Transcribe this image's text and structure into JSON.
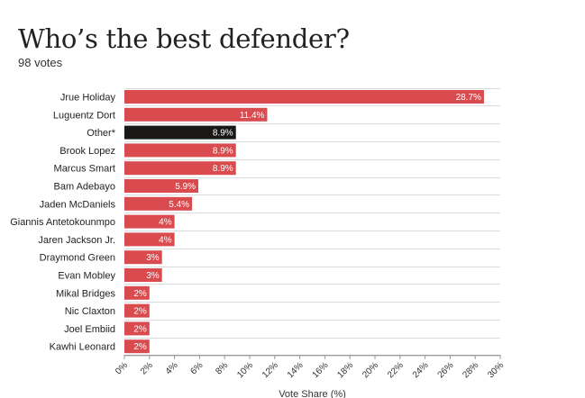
{
  "header": {
    "title": "Who’s the best defender?",
    "subtitle": "98 votes"
  },
  "chart_data": {
    "type": "bar",
    "orientation": "horizontal",
    "title": "Who’s the best defender?",
    "subtitle": "98 votes",
    "xlabel": "Vote Share (%)",
    "ylabel": "",
    "xlim": [
      0,
      30
    ],
    "x_ticks": [
      "0%",
      "2%",
      "4%",
      "6%",
      "8%",
      "10%",
      "12%",
      "14%",
      "16%",
      "18%",
      "20%",
      "22%",
      "24%",
      "26%",
      "28%",
      "30%"
    ],
    "x_tick_values": [
      0,
      2,
      4,
      6,
      8,
      10,
      12,
      14,
      16,
      18,
      20,
      22,
      24,
      26,
      28,
      30
    ],
    "grid": true,
    "legend": "none",
    "categories": [
      "Jrue Holiday",
      "Luguentz Dort",
      "Other*",
      "Brook Lopez",
      "Marcus Smart",
      "Bam Adebayo",
      "Jaden McDaniels",
      "Giannis Antetokounmpo",
      "Jaren Jackson Jr.",
      "Draymond Green",
      "Evan Mobley",
      "Mikal Bridges",
      "Nic Claxton",
      "Joel Embiid",
      "Kawhi Leonard"
    ],
    "values": [
      28.7,
      11.4,
      8.9,
      8.9,
      8.9,
      5.9,
      5.4,
      4,
      4,
      3,
      3,
      2,
      2,
      2,
      2
    ],
    "value_labels": [
      "28.7%",
      "11.4%",
      "8.9%",
      "8.9%",
      "8.9%",
      "5.9%",
      "5.4%",
      "4%",
      "4%",
      "3%",
      "3%",
      "2%",
      "2%",
      "2%",
      "2%"
    ],
    "colors": {
      "bar": "#d94b4f",
      "highlight": "#1a1717",
      "grid": "#dcdcdc",
      "text": "#222222"
    },
    "highlight_category": "Other*"
  }
}
